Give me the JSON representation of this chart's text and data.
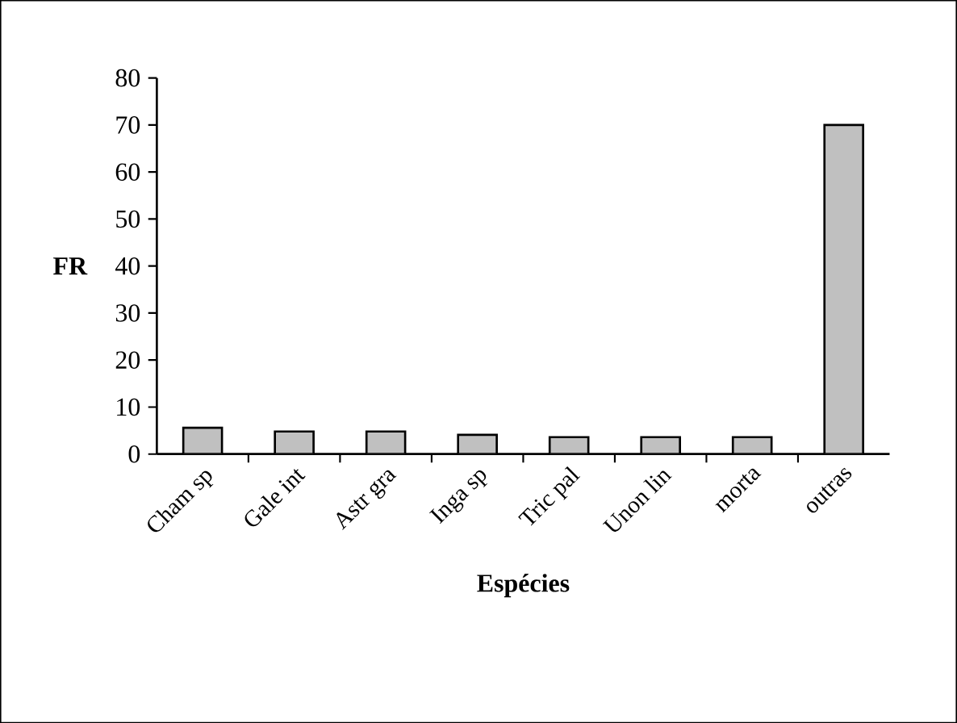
{
  "chart_data": {
    "type": "bar",
    "xlabel": "Espécies",
    "ylabel": "FR",
    "categories": [
      "Cham sp",
      "Gale int",
      "Astr gra",
      "Inga sp",
      "Tric pal",
      "Unon lin",
      "morta",
      "outras"
    ],
    "values": [
      5.6,
      4.8,
      4.8,
      4.1,
      3.6,
      3.6,
      3.6,
      70
    ],
    "color": "#c0c0c0",
    "ylim": [
      0,
      80
    ],
    "yticks": [
      0,
      10,
      20,
      30,
      40,
      50,
      60,
      70,
      80
    ],
    "grid": false
  }
}
